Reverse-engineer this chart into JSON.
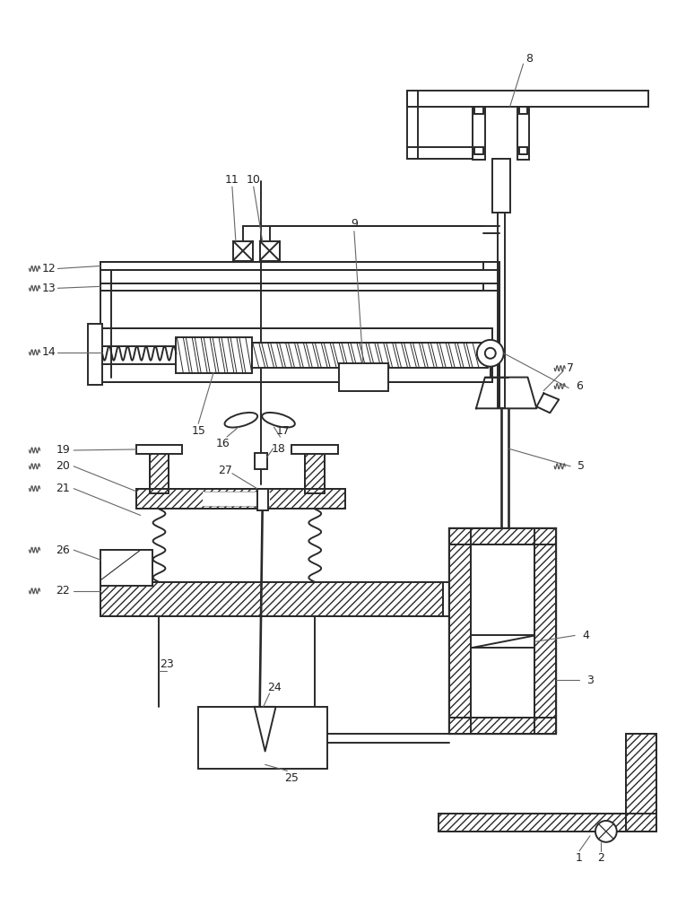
{
  "bg_color": "#ffffff",
  "lc": "#2a2a2a",
  "lw": 1.4,
  "fig_width": 7.65,
  "fig_height": 10.0
}
